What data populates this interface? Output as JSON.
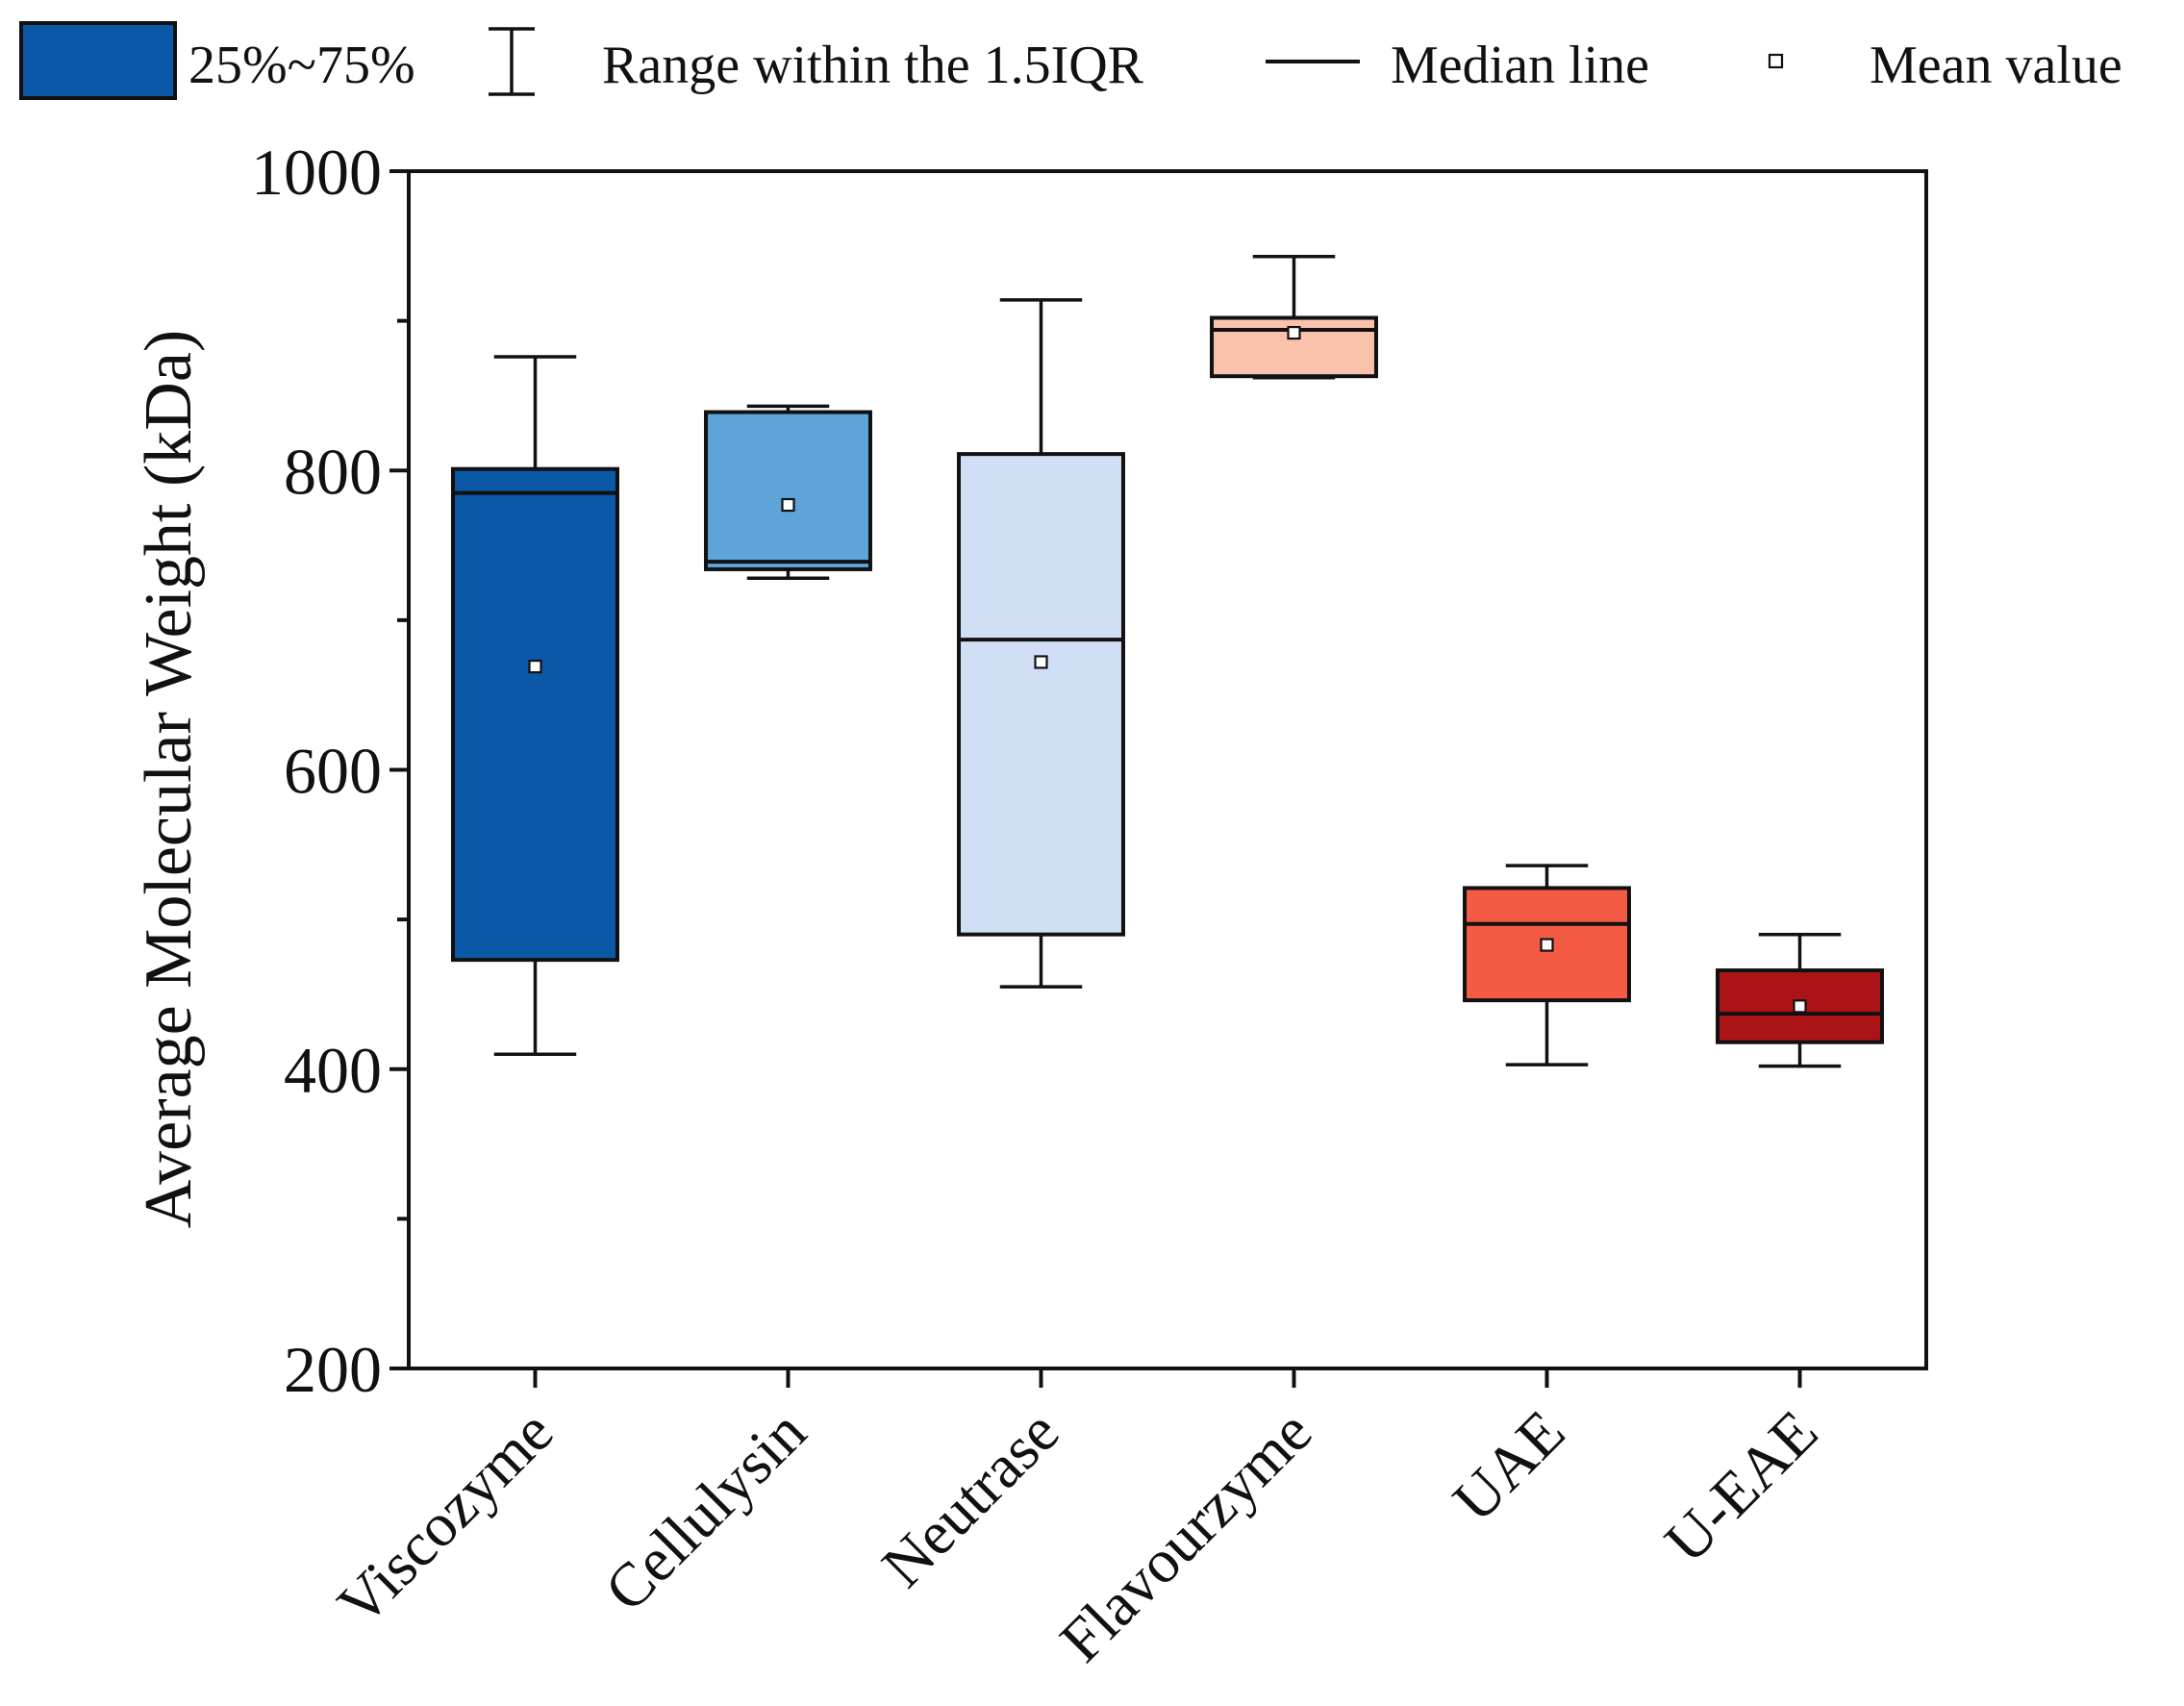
{
  "chart_data": {
    "type": "box",
    "ylabel": "Average Molecular Weight (kDa)",
    "ylim": [
      200,
      1000
    ],
    "yticks": [
      200,
      400,
      600,
      800,
      1000
    ],
    "yminor": [
      300,
      500,
      700,
      900
    ],
    "grid": false,
    "legend": {
      "placement": "top",
      "items": [
        {
          "key": "box",
          "label": "25%~75%",
          "color": "#0a58a6"
        },
        {
          "key": "whisker",
          "label": "Range within the 1.5IQR"
        },
        {
          "key": "median",
          "label": "Median line"
        },
        {
          "key": "mean",
          "label": "Mean value"
        }
      ]
    },
    "categories": [
      "Viscozyme",
      "Cellulysin",
      "Neutrase",
      "Flavourzyme",
      "UAE",
      "U-EAE"
    ],
    "boxes": [
      {
        "name": "Viscozyme",
        "whisker_low": 410,
        "q1": 473,
        "median": 785,
        "q3": 801,
        "whisker_high": 876,
        "mean": 669,
        "color": "#0a58a6"
      },
      {
        "name": "Cellulysin",
        "whisker_low": 728,
        "q1": 734,
        "median": 739,
        "q3": 839,
        "whisker_high": 843,
        "mean": 777,
        "color": "#5da5d9"
      },
      {
        "name": "Neutrase",
        "whisker_low": 455,
        "q1": 490,
        "median": 687,
        "q3": 811,
        "whisker_high": 914,
        "mean": 672,
        "color": "#d1dff6"
      },
      {
        "name": "Flavourzyme",
        "whisker_low": 862,
        "q1": 863,
        "median": 894,
        "q3": 902,
        "whisker_high": 943,
        "mean": 892,
        "color": "#fbc2ab"
      },
      {
        "name": "UAE",
        "whisker_low": 403,
        "q1": 446,
        "median": 497,
        "q3": 521,
        "whisker_high": 536,
        "mean": 483,
        "color": "#f45b45"
      },
      {
        "name": "U-EAE",
        "whisker_low": 402,
        "q1": 418,
        "median": 437,
        "q3": 466,
        "whisker_high": 490,
        "mean": 442,
        "color": "#ac1316"
      }
    ]
  }
}
